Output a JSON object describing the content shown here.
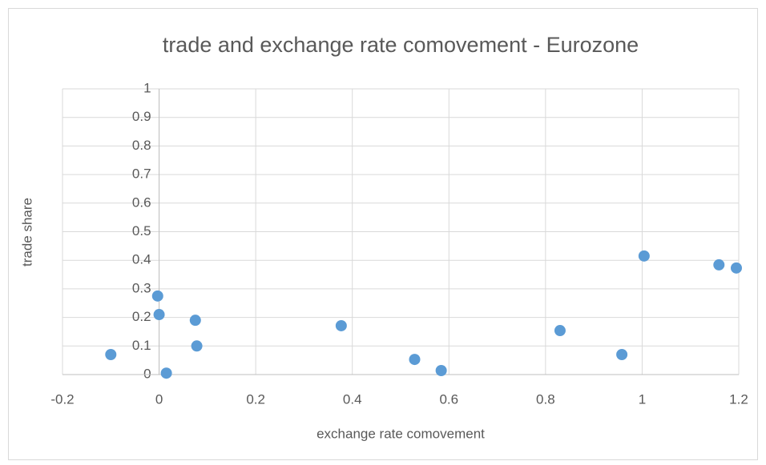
{
  "chart_data": {
    "type": "scatter",
    "title": "trade and exchange rate comovement - Eurozone",
    "x_label": "exchange rate comovement",
    "y_label": "trade share",
    "x": [
      -0.1,
      -0.003,
      0.0,
      0.015,
      0.075,
      0.078,
      0.377,
      0.529,
      0.584,
      0.83,
      0.958,
      1.004,
      1.159,
      1.195
    ],
    "values": [
      0.07,
      0.275,
      0.21,
      0.005,
      0.19,
      0.1,
      0.171,
      0.053,
      0.014,
      0.154,
      0.07,
      0.415,
      0.384,
      0.373
    ],
    "color": "#5b9bd5",
    "xlim": [
      -0.2,
      1.2
    ],
    "xticks": [
      -0.2,
      0,
      0.2,
      0.4,
      0.6,
      0.8,
      1,
      1.2
    ],
    "ylim": [
      0,
      1
    ],
    "yticks": [
      0,
      0.1,
      0.2,
      0.3,
      0.4,
      0.5,
      0.6,
      0.7,
      0.8,
      0.9,
      1
    ],
    "grid": true
  }
}
